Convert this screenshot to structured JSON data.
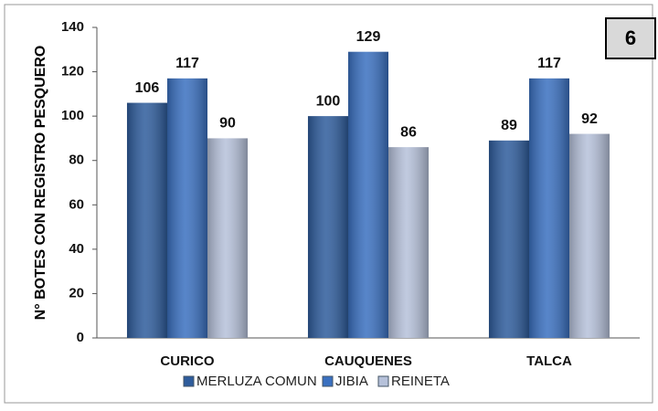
{
  "badge": "6",
  "chart_data": {
    "type": "bar",
    "y_label": "N° BOTES  CON REGISTRO PESQUERO",
    "categories": [
      "CURICO",
      "CAUQUENES",
      "TALCA"
    ],
    "series": [
      {
        "name": "MERLUZA COMUN",
        "color": "#2e5c9c",
        "values": [
          106,
          100,
          89
        ]
      },
      {
        "name": "JIBIA",
        "color": "#3a70c0",
        "values": [
          117,
          129,
          117
        ]
      },
      {
        "name": "REINETA",
        "color": "#b6c1da",
        "values": [
          90,
          86,
          92
        ]
      }
    ],
    "ylim": [
      0,
      140
    ],
    "yticks": [
      0,
      20,
      40,
      60,
      80,
      100,
      120,
      140
    ],
    "grid": false,
    "legend": "bottom"
  }
}
